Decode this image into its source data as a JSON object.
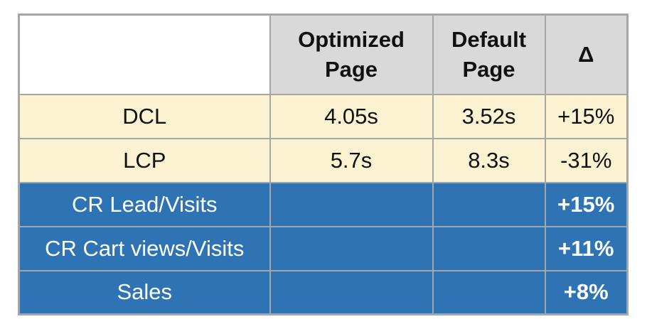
{
  "colors": {
    "header_fill": "#d9d9d9",
    "perf_row_fill": "#faf2d0",
    "business_row_fill": "#2e74b5",
    "border": "#a6a6a6",
    "header_text": "#111111",
    "business_text": "#ffffff"
  },
  "table": {
    "header": {
      "corner": "",
      "optimized": "Optimized\nPage",
      "default": "Default\nPage",
      "delta": "Δ"
    },
    "rows": [
      {
        "label": "DCL",
        "optimized": "4.05s",
        "default": "3.52s",
        "delta": "+15%"
      },
      {
        "label": "LCP",
        "optimized": "5.7s",
        "default": "8.3s",
        "delta": "-31%"
      },
      {
        "label": "CR Lead/Visits",
        "optimized": "",
        "default": "",
        "delta": "+15%"
      },
      {
        "label": "CR Cart views/Visits",
        "optimized": "",
        "default": "",
        "delta": "+11%"
      },
      {
        "label": "Sales",
        "optimized": "",
        "default": "",
        "delta": "+8%"
      }
    ]
  },
  "chart_data": {
    "type": "table",
    "columns": [
      "",
      "Optimized Page",
      "Default Page",
      "Δ"
    ],
    "rows": [
      [
        "DCL",
        "4.05s",
        "3.52s",
        "+15%"
      ],
      [
        "LCP",
        "5.7s",
        "8.3s",
        "-31%"
      ],
      [
        "CR Lead/Visits",
        "",
        "",
        "+15%"
      ],
      [
        "CR Cart views/Visits",
        "",
        "",
        "+11%"
      ],
      [
        "Sales",
        "",
        "",
        "+8%"
      ]
    ],
    "notes": {
      "row_groups": [
        {
          "rows": [
            "DCL",
            "LCP"
          ],
          "style": "cream"
        },
        {
          "rows": [
            "CR Lead/Visits",
            "CR Cart views/Visits",
            "Sales"
          ],
          "style": "blue"
        }
      ]
    }
  }
}
